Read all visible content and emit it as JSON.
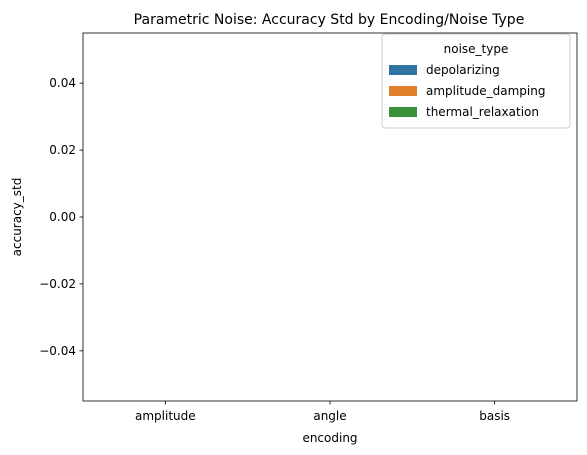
{
  "chart_data": {
    "type": "bar",
    "title": "Parametric Noise: Accuracy Std by Encoding/Noise Type",
    "xlabel": "encoding",
    "ylabel": "accuracy_std",
    "categories": [
      "amplitude",
      "angle",
      "basis"
    ],
    "ylim": [
      -0.055,
      0.055
    ],
    "yticks": [
      -0.04,
      -0.02,
      0.0,
      0.02,
      0.04
    ],
    "ytick_labels": [
      "−0.04",
      "−0.02",
      "0.00",
      "0.02",
      "0.04"
    ],
    "grid": false,
    "legend": {
      "title": "noise_type",
      "placement": "top-right"
    },
    "series": [
      {
        "name": "depolarizing",
        "color": "#3274a1",
        "values": [
          0,
          0,
          0
        ]
      },
      {
        "name": "amplitude_damping",
        "color": "#e1812c",
        "values": [
          0,
          0,
          0
        ]
      },
      {
        "name": "thermal_relaxation",
        "color": "#3a923a",
        "values": [
          0,
          0,
          0
        ]
      }
    ]
  }
}
